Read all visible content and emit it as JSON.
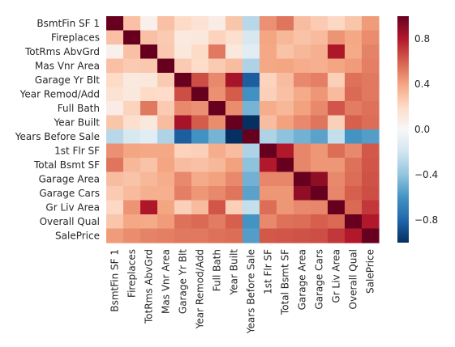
{
  "chart_data": {
    "type": "heatmap",
    "rows": [
      "BsmtFin SF 1",
      "Fireplaces",
      "TotRms AbvGrd",
      "Mas Vnr Area",
      "Garage Yr Blt",
      "Year Remod/Add",
      "Full Bath",
      "Year Built",
      "Years Before Sale",
      "1st Flr SF",
      "Total Bsmt SF",
      "Garage Area",
      "Garage Cars",
      "Gr Liv Area",
      "Overall Qual",
      "SalePrice"
    ],
    "columns": [
      "BsmtFin SF 1",
      "Fireplaces",
      "TotRms AbvGrd",
      "Mas Vnr Area",
      "Garage Yr Blt",
      "Year Remod/Add",
      "Full Bath",
      "Year Built",
      "Years Before Sale",
      "1st Flr SF",
      "Total Bsmt SF",
      "Garage Area",
      "Garage Cars",
      "Gr Liv Area",
      "Overall Qual",
      "SalePrice"
    ],
    "values": [
      [
        1.0,
        0.3,
        0.05,
        0.3,
        0.2,
        0.15,
        0.08,
        0.28,
        -0.28,
        0.46,
        0.54,
        0.31,
        0.26,
        0.21,
        0.28,
        0.43
      ],
      [
        0.3,
        1.0,
        0.3,
        0.26,
        0.1,
        0.11,
        0.23,
        0.17,
        -0.17,
        0.4,
        0.33,
        0.29,
        0.32,
        0.45,
        0.39,
        0.47
      ],
      [
        0.05,
        0.3,
        1.0,
        0.27,
        0.11,
        0.2,
        0.53,
        0.11,
        -0.11,
        0.39,
        0.29,
        0.33,
        0.36,
        0.81,
        0.38,
        0.5
      ],
      [
        0.3,
        0.26,
        0.27,
        1.0,
        0.26,
        0.19,
        0.26,
        0.31,
        -0.31,
        0.39,
        0.4,
        0.37,
        0.36,
        0.4,
        0.43,
        0.51
      ],
      [
        0.2,
        0.1,
        0.11,
        0.26,
        1.0,
        0.65,
        0.48,
        0.83,
        -0.83,
        0.23,
        0.31,
        0.48,
        0.51,
        0.24,
        0.55,
        0.53
      ],
      [
        0.15,
        0.11,
        0.2,
        0.19,
        0.65,
        1.0,
        0.46,
        0.61,
        -0.61,
        0.24,
        0.3,
        0.38,
        0.44,
        0.32,
        0.57,
        0.53
      ],
      [
        0.08,
        0.23,
        0.53,
        0.26,
        0.48,
        0.46,
        1.0,
        0.47,
        -0.47,
        0.37,
        0.33,
        0.41,
        0.48,
        0.63,
        0.52,
        0.55
      ],
      [
        0.28,
        0.17,
        0.11,
        0.31,
        0.83,
        0.61,
        0.47,
        1.0,
        -1.0,
        0.31,
        0.41,
        0.48,
        0.54,
        0.24,
        0.6,
        0.56
      ],
      [
        -0.28,
        -0.17,
        -0.11,
        -0.31,
        -0.83,
        -0.61,
        -0.47,
        -1.0,
        1.0,
        -0.31,
        -0.41,
        -0.48,
        -0.54,
        -0.24,
        -0.6,
        -0.56
      ],
      [
        0.46,
        0.4,
        0.39,
        0.39,
        0.23,
        0.24,
        0.37,
        0.31,
        -0.31,
        1.0,
        0.8,
        0.49,
        0.44,
        0.56,
        0.48,
        0.62
      ],
      [
        0.54,
        0.33,
        0.29,
        0.4,
        0.31,
        0.3,
        0.33,
        0.41,
        -0.41,
        0.8,
        1.0,
        0.49,
        0.44,
        0.44,
        0.55,
        0.63
      ],
      [
        0.31,
        0.29,
        0.33,
        0.37,
        0.48,
        0.38,
        0.41,
        0.48,
        -0.48,
        0.49,
        0.49,
        1.0,
        0.89,
        0.48,
        0.56,
        0.64
      ],
      [
        0.26,
        0.32,
        0.36,
        0.36,
        0.51,
        0.44,
        0.48,
        0.54,
        -0.54,
        0.44,
        0.44,
        0.89,
        1.0,
        0.49,
        0.6,
        0.65
      ],
      [
        0.21,
        0.45,
        0.81,
        0.4,
        0.24,
        0.32,
        0.63,
        0.24,
        -0.24,
        0.56,
        0.44,
        0.48,
        0.49,
        1.0,
        0.57,
        0.71
      ],
      [
        0.28,
        0.39,
        0.38,
        0.43,
        0.55,
        0.57,
        0.52,
        0.6,
        -0.6,
        0.48,
        0.55,
        0.56,
        0.6,
        0.57,
        1.0,
        0.8
      ],
      [
        0.43,
        0.47,
        0.5,
        0.51,
        0.53,
        0.53,
        0.55,
        0.56,
        -0.56,
        0.62,
        0.63,
        0.64,
        0.65,
        0.71,
        0.8,
        1.0
      ]
    ],
    "colorbar": {
      "min": -1.0,
      "max": 1.0,
      "ticks": [
        0.8,
        0.4,
        0.0,
        -0.4,
        -0.8
      ],
      "tick_labels": [
        "0.8",
        "0.4",
        "0.0",
        "−0.4",
        "−0.8"
      ],
      "colormap": "RdBu_r"
    },
    "title": "",
    "xlabel": "",
    "ylabel": ""
  }
}
